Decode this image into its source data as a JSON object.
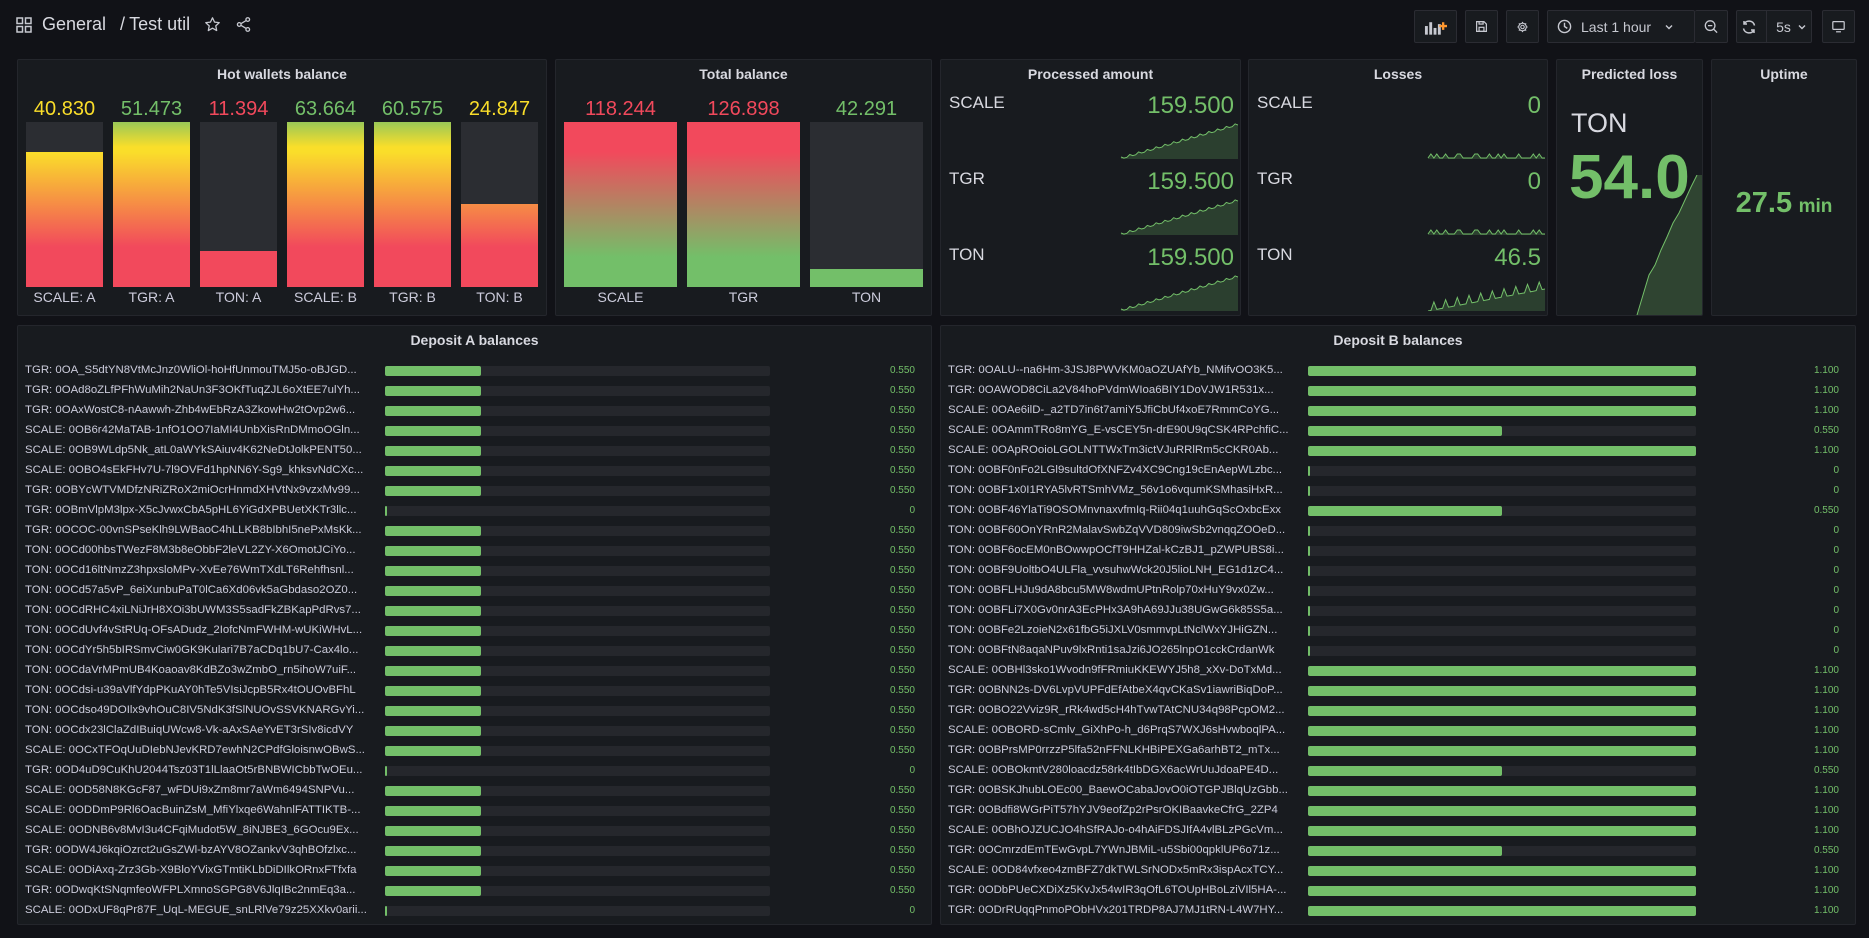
{
  "topbar": {
    "breadcrumb_folder": "General",
    "breadcrumb_sep": "/",
    "breadcrumb_dashboard": "Test util",
    "time_range": "Last 1 hour",
    "refresh_interval": "5s"
  },
  "panels": {
    "hot_wallets": {
      "title": "Hot wallets balance",
      "bars": [
        {
          "label": "SCALE: A",
          "value": "40.830",
          "fill": 0.82,
          "color": "#fade2a"
        },
        {
          "label": "TGR: A",
          "value": "51.473",
          "fill": 1.0,
          "color": "#73bf69"
        },
        {
          "label": "TON: A",
          "value": "11.394",
          "fill": 0.22,
          "color": "#f2495c"
        },
        {
          "label": "SCALE: B",
          "value": "63.664",
          "fill": 1.0,
          "color": "#73bf69"
        },
        {
          "label": "TGR: B",
          "value": "60.575",
          "fill": 1.0,
          "color": "#73bf69"
        },
        {
          "label": "TON: B",
          "value": "24.847",
          "fill": 0.5,
          "color": "#fade2a"
        }
      ]
    },
    "total_balance": {
      "title": "Total balance",
      "bars": [
        {
          "label": "SCALE",
          "value": "118.244",
          "fill": 1.0,
          "color": "#f2495c"
        },
        {
          "label": "TGR",
          "value": "126.898",
          "fill": 1.0,
          "color": "#f2495c"
        },
        {
          "label": "TON",
          "value": "42.291",
          "fill": 0.11,
          "color": "#73bf69"
        }
      ]
    },
    "processed": {
      "title": "Processed amount",
      "rows": [
        {
          "name": "SCALE",
          "value": "159.500"
        },
        {
          "name": "TGR",
          "value": "159.500"
        },
        {
          "name": "TON",
          "value": "159.500"
        }
      ]
    },
    "losses": {
      "title": "Losses",
      "rows": [
        {
          "name": "SCALE",
          "value": "0"
        },
        {
          "name": "TGR",
          "value": "0"
        },
        {
          "name": "TON",
          "value": "46.5"
        }
      ]
    },
    "predicted_loss": {
      "title": "Predicted loss",
      "name": "TON",
      "value": "54.0"
    },
    "uptime": {
      "title": "Uptime",
      "value": "27.5",
      "unit": "min"
    },
    "deposit_a": {
      "title": "Deposit A balances",
      "rows": [
        {
          "name": "TGR: 0OA_S5dtYN8VtMcJnz0WliOl-hoHfUnmouTMJ5o-oBJGD...",
          "value": "0.550",
          "fill": 0.25
        },
        {
          "name": "TGR: 0OAd8oZLfPFhWuMih2NaUn3F3OKfTuqZJL6oXtEE7ulYh...",
          "value": "0.550",
          "fill": 0.25
        },
        {
          "name": "TGR: 0OAxWostC8-nAawwh-Zhb4wEbRzA3ZkowHw2tOvp2w6...",
          "value": "0.550",
          "fill": 0.25
        },
        {
          "name": "SCALE: 0OB6r42MaTAB-1nfO1OO7IaMI4UnbXisRnDMmoOGln...",
          "value": "0.550",
          "fill": 0.25
        },
        {
          "name": "SCALE: 0OB9WLdp5Nk_atL0aWYkSAiuv4K62NeDtJolkPENT50...",
          "value": "0.550",
          "fill": 0.25
        },
        {
          "name": "SCALE: 0OBO4sEkFHv7U-7l9OVFd1hpNN6Y-Sg9_khksvNdCXc...",
          "value": "0.550",
          "fill": 0.25
        },
        {
          "name": "TGR: 0OBYcWTVMDfzNRiZRoX2miOcrHnmdXHVtNx9vzxMv99...",
          "value": "0.550",
          "fill": 0.25
        },
        {
          "name": "TGR: 0OBmVlpM3lpx-X5cJvwxCbA5pHL6YiGdXPBUetXKTr3llc...",
          "value": "0",
          "fill": 0.0
        },
        {
          "name": "TGR: 0OCOC-00vnSPseKlh9LWBaoC4hLLKB8bIbhI5nePxMsKk...",
          "value": "0.550",
          "fill": 0.25
        },
        {
          "name": "TON: 0OCd00hbsTWezF8M3b8eObbF2leVL2ZY-X6OmotJCiYo...",
          "value": "0.550",
          "fill": 0.25
        },
        {
          "name": "TON: 0OCd16ltNmzZ3hpxsloMPv-XvEe76WmTXdLT6Rehfhsnl...",
          "value": "0.550",
          "fill": 0.25
        },
        {
          "name": "TON: 0OCd57a5vP_6eiXunbuPaT0lCa6Xd06vk5aGbdaso2OZ0...",
          "value": "0.550",
          "fill": 0.25
        },
        {
          "name": "TON: 0OCdRHC4xiLNiJrH8XOi3bUWM3S5sadFkZBKapPdRvs7...",
          "value": "0.550",
          "fill": 0.25
        },
        {
          "name": "TON: 0OCdUvf4vStRUq-OFsADudz_2IofcNmFWHM-wUKiWHvL...",
          "value": "0.550",
          "fill": 0.25
        },
        {
          "name": "TON: 0OCdYr5h5bIRSmvCiw0GK9Kulari7B7aCDq1bU7-Cax4lo...",
          "value": "0.550",
          "fill": 0.25
        },
        {
          "name": "TON: 0OCdaVrMPmUB4Koaoav8KdBZo3wZmbO_rn5ihoW7uiF...",
          "value": "0.550",
          "fill": 0.25
        },
        {
          "name": "TON: 0OCdsi-u39aVlfYdpPKuAY0hTe5VIsiJcpB5Rx4tOUOvBFhL",
          "value": "0.550",
          "fill": 0.25
        },
        {
          "name": "TON: 0OCdso49DOIlx9vhOuC8IV5NdK3fSlNUOvSSVKNARGvYi...",
          "value": "0.550",
          "fill": 0.25
        },
        {
          "name": "TON: 0OCdx23lClaZdIBuiqUWcw8-Vk-aAxSAeYvET3rSIv8icdVY",
          "value": "0.550",
          "fill": 0.25
        },
        {
          "name": "SCALE: 0OCxTFOqUuDIebNJevKRD7ewhN2CPdfGloisnwOBwS...",
          "value": "0.550",
          "fill": 0.25
        },
        {
          "name": "TGR: 0OD4uD9CuKhU2044Tsz03T1lLlaaOt5rBNBWICbbTwOEu...",
          "value": "0",
          "fill": 0.0
        },
        {
          "name": "SCALE: 0OD58N8KGcF87_wFDUi9xZm8mr7aWm6494SNPVu...",
          "value": "0.550",
          "fill": 0.25
        },
        {
          "name": "SCALE: 0ODDmP9Rl6OacBuinZsM_MfiYlxqe6WahnlFATTIKTB-...",
          "value": "0.550",
          "fill": 0.25
        },
        {
          "name": "SCALE: 0ODNB6v8MvI3u4CFqiMudot5W_8iNJBE3_6GOcu9Ex...",
          "value": "0.550",
          "fill": 0.25
        },
        {
          "name": "TGR: 0ODW4J6kqiOzrct2uGsZWl-bzAYV8OZankvV3qhBOfzlxc...",
          "value": "0.550",
          "fill": 0.25
        },
        {
          "name": "SCALE: 0ODiAxq-Zrz3Gb-X9BloYVixGTmtiKLbDiDIlkORnxFTfxfa",
          "value": "0.550",
          "fill": 0.25
        },
        {
          "name": "TGR: 0ODwqKtSNqmfeoWFPLXmnoSGPG8V6JlqIBc2nmEq3a...",
          "value": "0.550",
          "fill": 0.25
        },
        {
          "name": "SCALE: 0ODxUF8qPr87F_UqL-MEGUE_snLRlVe79z25XXkv0arii...",
          "value": "0",
          "fill": 0.0
        }
      ]
    },
    "deposit_b": {
      "title": "Deposit B balances",
      "rows": [
        {
          "name": "TGR: 0OALU--na6Hm-3JSJ8PWVKM0aOZUAfYb_NMifvOO3K5...",
          "value": "1.100",
          "fill": 1.0
        },
        {
          "name": "TGR: 0OAWOD8CiLa2V84hoPVdmWIoa6BIY1DoVJW1R531x...",
          "value": "1.100",
          "fill": 1.0
        },
        {
          "name": "SCALE: 0OAe6ilD-_a2TD7in6t7amiY5JfiCbUf4xoE7RmmCoYG...",
          "value": "1.100",
          "fill": 1.0
        },
        {
          "name": "SCALE: 0OAmmTRo8mYG_E-vsCEY5n-drE90U9qCSK4RPchfiC...",
          "value": "0.550",
          "fill": 0.5
        },
        {
          "name": "SCALE: 0OApROoioLGOLNTTWxTm3ictVJuRRlRm5cCKR0Ab...",
          "value": "1.100",
          "fill": 1.0
        },
        {
          "name": "TON: 0OBF0nFo2LGl9sultdOfXNFZv4XC9Cng19cEnAepWLzbc...",
          "value": "0",
          "fill": 0.0
        },
        {
          "name": "TON: 0OBF1x0I1RYA5lvRTSmhVMz_56v1o6vqumKSMhasiHxR...",
          "value": "0",
          "fill": 0.0
        },
        {
          "name": "TON: 0OBF46YlaTi9OSOMnvnaxvfmIq-Rii04q1uuhGqScOxbcExx",
          "value": "0.550",
          "fill": 0.5
        },
        {
          "name": "TON: 0OBF60OnYRnR2MalavSwbZqVVD809iwSb2vnqqZOOeD...",
          "value": "0",
          "fill": 0.0
        },
        {
          "name": "TON: 0OBF6ocEM0nBOwwpOCfT9HHZal-kCzBJ1_pZWPUBS8i...",
          "value": "0",
          "fill": 0.0
        },
        {
          "name": "TON: 0OBF9UoltbO4ULFla_vvsuhwWck20J5lioLNH_EG1d1zC4...",
          "value": "0",
          "fill": 0.0
        },
        {
          "name": "TON: 0OBFLHJu9dA8bcu5MW8wdmUPtnRolp70xHuY9vx0Zw...",
          "value": "0",
          "fill": 0.0
        },
        {
          "name": "TON: 0OBFLi7X0Gv0nrA3EcPHx3A9hA69JJu38UGwG6k85S5a...",
          "value": "0",
          "fill": 0.0
        },
        {
          "name": "TON: 0OBFe2LzoieN2x61fbG5iJXLV0smmvpLtNclWxYJHiGZN...",
          "value": "0",
          "fill": 0.0
        },
        {
          "name": "TON: 0OBFtN8aqaNPuv9lxRnti1saJzi6JO265lnpO1cckCrdanWk",
          "value": "0",
          "fill": 0.0
        },
        {
          "name": "SCALE: 0OBHl3sko1Wvodn9fFRmiuKKEWYJ5h8_xXv-DoTxMd...",
          "value": "1.100",
          "fill": 1.0
        },
        {
          "name": "TGR: 0OBNN2s-DV6LvpVUPFdEfAtbeX4qvCKaSv1iawriBiqDoP...",
          "value": "1.100",
          "fill": 1.0
        },
        {
          "name": "TGR: 0OBO22Vviz9R_rRk4wd5cH4hTvwTAtCNU34q98PcpOM2...",
          "value": "1.100",
          "fill": 1.0
        },
        {
          "name": "SCALE: 0OBORD-sCmlv_GiXhPo-h_d6PrqS7WXJ6sHvwboqlPA...",
          "value": "1.100",
          "fill": 1.0
        },
        {
          "name": "TGR: 0OBPrsMP0rrzzP5lfa52nFFNLKHBiPEXGa6arhBT2_mTx...",
          "value": "1.100",
          "fill": 1.0
        },
        {
          "name": "SCALE: 0OBOkmtV280loacdz58rk4tIbDGX6acWrUuJdoaPE4D...",
          "value": "0.550",
          "fill": 0.5
        },
        {
          "name": "TGR: 0OBSKJhubLOEc00_BaewOCabaJovO0iOTGPJBlqUzGbb...",
          "value": "1.100",
          "fill": 1.0
        },
        {
          "name": "TGR: 0OBdfi8WGrPiT57hYJV9eofZp2rPsrOKIBaavkeCfrG_2ZP4",
          "value": "1.100",
          "fill": 1.0
        },
        {
          "name": "SCALE: 0OBhOJZUCJO4hSfRAJo-o4hAiFDSJIfA4vlBLzPGcVm...",
          "value": "1.100",
          "fill": 1.0
        },
        {
          "name": "TGR: 0OCmrzdEmTEwGvpL7YWnJBMiL-u5Sbi00qpklUP6o71z...",
          "value": "0.550",
          "fill": 0.5
        },
        {
          "name": "SCALE: 0OD84vfxeo4zmBFZ7dkTWLSrNODx5mRx3ispAcxTCY...",
          "value": "1.100",
          "fill": 1.0
        },
        {
          "name": "TGR: 0ODbPUeCXDiXz5KvJx54wIR3qOfL6TOUpHBoLziVIl5HA-...",
          "value": "1.100",
          "fill": 1.0
        },
        {
          "name": "TGR: 0ODrRUqqPnmoPObHVx201TRDP8AJ7MJ1tRN-L4W7HY...",
          "value": "1.100",
          "fill": 1.0
        }
      ]
    }
  }
}
